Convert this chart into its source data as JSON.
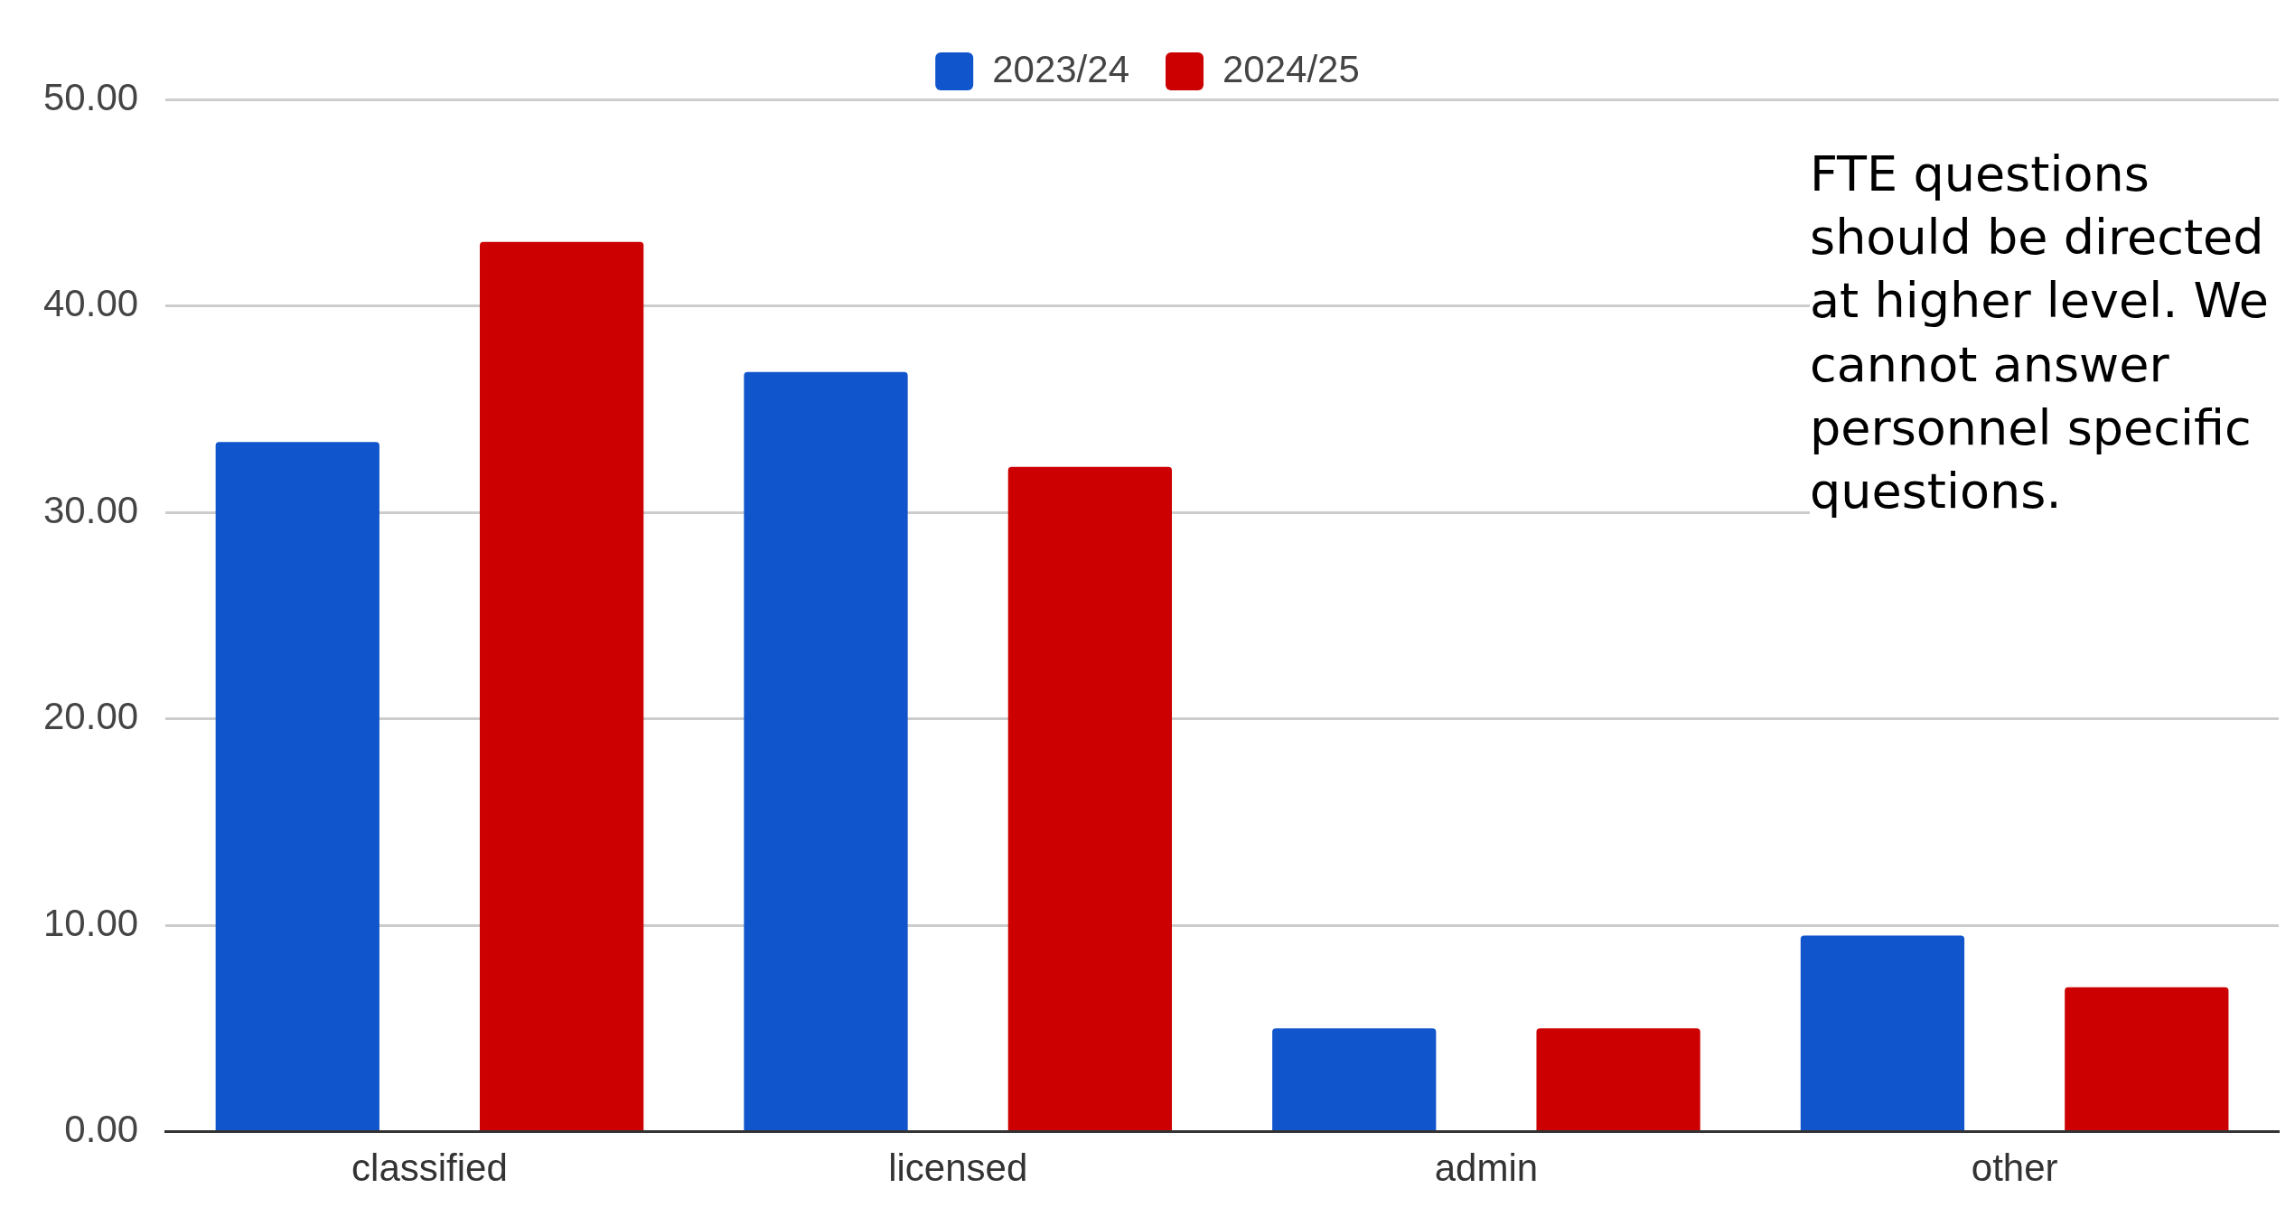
{
  "chart_data": {
    "type": "bar",
    "categories": [
      "classified",
      "licensed",
      "admin",
      "other"
    ],
    "series": [
      {
        "name": "2023/24",
        "color": "#1155cc",
        "values": [
          33.4,
          36.8,
          5.0,
          9.5
        ]
      },
      {
        "name": "2024/25",
        "color": "#cc0000",
        "values": [
          43.1,
          32.2,
          5.0,
          7.0
        ]
      }
    ],
    "ylim": [
      0,
      50
    ],
    "yticks": [
      {
        "value": 0,
        "label": "0.00"
      },
      {
        "value": 10,
        "label": "10.00"
      },
      {
        "value": 20,
        "label": "20.00"
      },
      {
        "value": 30,
        "label": "30.00"
      },
      {
        "value": 40,
        "label": "40.00"
      },
      {
        "value": 50,
        "label": "50.00"
      }
    ],
    "grid": "y",
    "legend": "top",
    "annotations": [
      "FTE questions should be directed at higher level.  We cannot answer personnel specific questions."
    ]
  }
}
